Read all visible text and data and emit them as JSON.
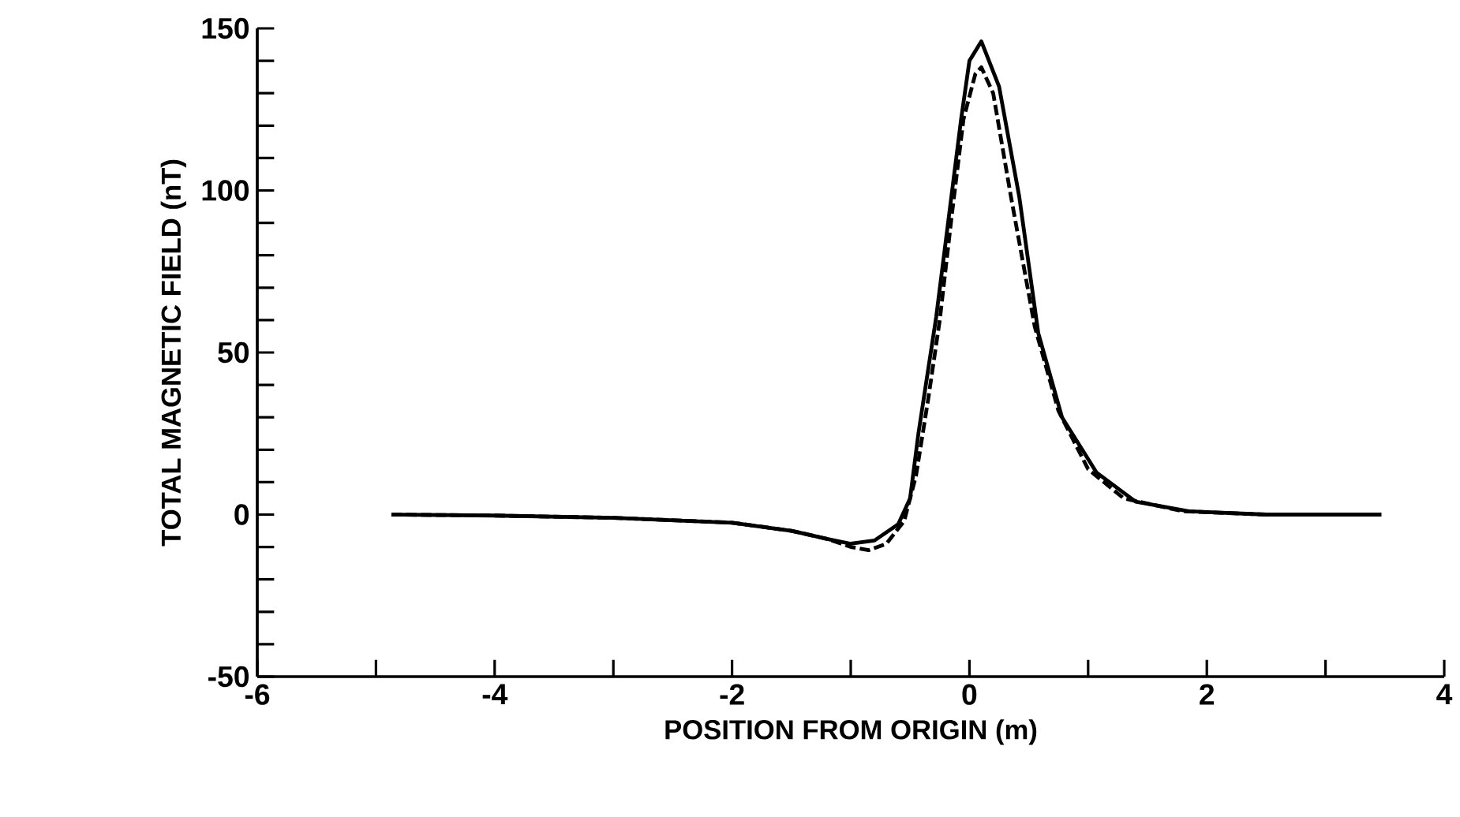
{
  "chart_data": {
    "type": "line",
    "xlabel": "POSITION FROM ORIGIN (m)",
    "ylabel": "TOTAL MAGNETIC FIELD (nT)",
    "xlim": [
      -6,
      4
    ],
    "ylim": [
      -50,
      150
    ],
    "xticks": [
      -6,
      {
        "value": -5,
        "label": null
      },
      -4,
      {
        "value": -3,
        "label": null
      },
      -2,
      {
        "value": -1,
        "label": null
      },
      0,
      {
        "value": 1,
        "label": null
      },
      2,
      {
        "value": 3,
        "label": null
      },
      4
    ],
    "yticks": [
      -50,
      {
        "value": -40,
        "label": null
      },
      {
        "value": -30,
        "label": null
      },
      {
        "value": -20,
        "label": null
      },
      {
        "value": -10,
        "label": null
      },
      0,
      {
        "value": 10,
        "label": null
      },
      {
        "value": 20,
        "label": null
      },
      {
        "value": 30,
        "label": null
      },
      {
        "value": 40,
        "label": null
      },
      50,
      {
        "value": 60,
        "label": null
      },
      {
        "value": 70,
        "label": null
      },
      {
        "value": 80,
        "label": null
      },
      {
        "value": 90,
        "label": null
      },
      100,
      {
        "value": 110,
        "label": null
      },
      {
        "value": 120,
        "label": null
      },
      {
        "value": 130,
        "label": null
      },
      {
        "value": 140,
        "label": null
      },
      150
    ],
    "series": [
      {
        "color": "#000000",
        "line_style": "solid",
        "x": [
          -4.87,
          -4,
          -3,
          -2,
          -1.5,
          -1.2,
          -1.0,
          -0.8,
          -0.6,
          -0.5,
          -0.43,
          -0.28,
          -0.18,
          -0.07,
          0,
          0.1,
          0.25,
          0.42,
          0.58,
          0.78,
          1.07,
          1.4,
          1.85,
          2.5,
          3.47
        ],
        "values": [
          0,
          -0.3,
          -1,
          -2.5,
          -5,
          -7.5,
          -9,
          -8,
          -3,
          5,
          25,
          61,
          90,
          122,
          140,
          146,
          132,
          98,
          56,
          30,
          13,
          4,
          1,
          0,
          0
        ]
      },
      {
        "color": "#000000",
        "line_style": "dashed",
        "x": [
          -4.87,
          -4,
          -3,
          -2,
          -1.5,
          -1.2,
          -1.0,
          -0.85,
          -0.7,
          -0.55,
          -0.45,
          -0.35,
          -0.25,
          -0.15,
          -0.05,
          0.05,
          0.1,
          0.2,
          0.35,
          0.55,
          0.75,
          1.0,
          1.3,
          1.8,
          2.5,
          3.47
        ],
        "values": [
          0,
          -0.3,
          -1,
          -2.5,
          -5,
          -7.5,
          -10,
          -11,
          -9,
          -2,
          12,
          35,
          60,
          92,
          122,
          136,
          138,
          130,
          98,
          58,
          32,
          14,
          5,
          1,
          0,
          0
        ]
      }
    ]
  }
}
